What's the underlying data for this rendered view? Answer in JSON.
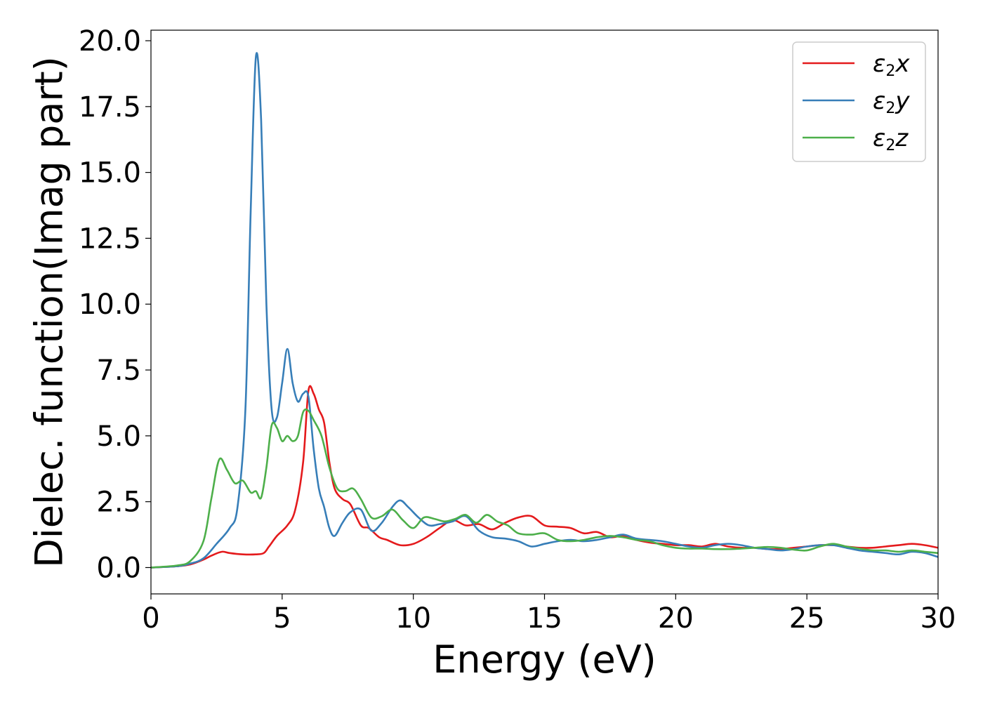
{
  "chart_data": {
    "type": "line",
    "xlabel": "Energy (eV)",
    "ylabel": "Dielec. function(Imag part)",
    "xlim": [
      0,
      30
    ],
    "ylim": [
      -1.0,
      20.4
    ],
    "xticks": [
      0,
      5,
      10,
      15,
      20,
      25,
      30
    ],
    "xtick_labels": [
      "0",
      "5",
      "10",
      "15",
      "20",
      "25",
      "30"
    ],
    "yticks": [
      0.0,
      2.5,
      5.0,
      7.5,
      10.0,
      12.5,
      15.0,
      17.5,
      20.0
    ],
    "ytick_labels": [
      "0.0",
      "2.5",
      "5.0",
      "7.5",
      "10.0",
      "12.5",
      "15.0",
      "17.5",
      "20.0"
    ],
    "grid": false,
    "legend_position": "top-right",
    "series": [
      {
        "name": "ε2x",
        "legend_main": "ε",
        "legend_sub": "2",
        "legend_var": "x",
        "color": "#e41a1c",
        "x": [
          0,
          1,
          1.5,
          2,
          2.3,
          2.7,
          3.0,
          3.5,
          4.0,
          4.3,
          4.5,
          4.8,
          5.2,
          5.5,
          5.8,
          6.0,
          6.2,
          6.4,
          6.6,
          6.8,
          7.0,
          7.3,
          7.6,
          8.0,
          8.3,
          8.7,
          9.0,
          9.5,
          10.0,
          10.5,
          11.0,
          11.5,
          12.0,
          12.5,
          13.0,
          13.5,
          14.0,
          14.5,
          15.0,
          15.5,
          16.0,
          16.5,
          17.0,
          17.5,
          18.0,
          18.5,
          19.0,
          19.5,
          20.0,
          20.5,
          21.0,
          21.5,
          22.0,
          22.5,
          23.0,
          23.5,
          24.0,
          24.5,
          25.0,
          25.5,
          26.0,
          26.5,
          27.0,
          27.5,
          28.0,
          28.5,
          29.0,
          29.5,
          30.0
        ],
        "y": [
          0.0,
          0.05,
          0.12,
          0.3,
          0.45,
          0.6,
          0.55,
          0.5,
          0.5,
          0.55,
          0.8,
          1.2,
          1.6,
          2.2,
          4.0,
          6.7,
          6.6,
          6.0,
          5.5,
          4.0,
          3.0,
          2.6,
          2.4,
          1.6,
          1.5,
          1.15,
          1.05,
          0.85,
          0.9,
          1.15,
          1.5,
          1.8,
          1.6,
          1.65,
          1.45,
          1.7,
          1.9,
          1.95,
          1.6,
          1.55,
          1.5,
          1.3,
          1.35,
          1.15,
          1.2,
          1.05,
          0.95,
          0.9,
          0.85,
          0.85,
          0.8,
          0.9,
          0.8,
          0.75,
          0.75,
          0.7,
          0.7,
          0.75,
          0.8,
          0.85,
          0.85,
          0.8,
          0.75,
          0.75,
          0.8,
          0.85,
          0.9,
          0.85,
          0.75
        ]
      },
      {
        "name": "ε2y",
        "legend_main": "ε",
        "legend_sub": "2",
        "legend_var": "y",
        "color": "#377eb8",
        "x": [
          0,
          1,
          1.5,
          2,
          2.5,
          3.0,
          3.3,
          3.6,
          3.8,
          4.0,
          4.2,
          4.4,
          4.6,
          4.8,
          5.0,
          5.2,
          5.4,
          5.6,
          5.8,
          6.0,
          6.2,
          6.4,
          6.6,
          6.8,
          7.0,
          7.3,
          7.6,
          8.0,
          8.4,
          8.8,
          9.2,
          9.5,
          9.8,
          10.2,
          10.6,
          11.0,
          11.5,
          12.0,
          12.5,
          13.0,
          13.5,
          14.0,
          14.5,
          15.0,
          15.5,
          16.0,
          16.5,
          17.0,
          17.5,
          18.0,
          18.5,
          19.0,
          19.5,
          20.0,
          20.5,
          21.0,
          21.5,
          22.0,
          22.5,
          23.0,
          23.5,
          24.0,
          24.5,
          25.0,
          25.5,
          26.0,
          26.5,
          27.0,
          27.5,
          28.0,
          28.5,
          29.0,
          29.5,
          30.0
        ],
        "y": [
          0.0,
          0.05,
          0.15,
          0.35,
          0.9,
          1.5,
          2.3,
          6.0,
          13.5,
          19.4,
          17.0,
          10.0,
          6.0,
          5.7,
          7.0,
          8.3,
          7.0,
          6.3,
          6.6,
          6.5,
          4.5,
          3.0,
          2.3,
          1.5,
          1.2,
          1.7,
          2.1,
          2.2,
          1.4,
          1.7,
          2.3,
          2.55,
          2.3,
          1.9,
          1.6,
          1.65,
          1.75,
          1.95,
          1.4,
          1.15,
          1.1,
          1.0,
          0.8,
          0.9,
          1.0,
          1.05,
          1.0,
          1.05,
          1.15,
          1.25,
          1.1,
          1.05,
          1.0,
          0.9,
          0.8,
          0.75,
          0.85,
          0.9,
          0.85,
          0.75,
          0.7,
          0.65,
          0.7,
          0.8,
          0.85,
          0.85,
          0.75,
          0.65,
          0.6,
          0.55,
          0.5,
          0.6,
          0.55,
          0.4
        ]
      },
      {
        "name": "ε2z",
        "legend_main": "ε",
        "legend_sub": "2",
        "legend_var": "z",
        "color": "#4daf4a",
        "x": [
          0,
          1,
          1.5,
          2.0,
          2.3,
          2.6,
          2.9,
          3.2,
          3.5,
          3.8,
          4.0,
          4.2,
          4.4,
          4.6,
          4.8,
          5.0,
          5.2,
          5.4,
          5.6,
          5.8,
          6.0,
          6.2,
          6.5,
          6.8,
          7.1,
          7.4,
          7.7,
          8.0,
          8.4,
          8.8,
          9.2,
          9.6,
          10.0,
          10.4,
          10.8,
          11.2,
          11.6,
          12.0,
          12.4,
          12.8,
          13.2,
          13.6,
          14.0,
          14.5,
          15.0,
          15.5,
          16.0,
          16.5,
          17.0,
          17.5,
          18.0,
          18.5,
          19.0,
          19.5,
          20.0,
          20.5,
          21.0,
          21.5,
          22.0,
          22.5,
          23.0,
          23.5,
          24.0,
          24.5,
          25.0,
          25.5,
          26.0,
          26.5,
          27.0,
          27.5,
          28.0,
          28.5,
          29.0,
          29.5,
          30.0
        ],
        "y": [
          0.0,
          0.08,
          0.25,
          1.0,
          2.6,
          4.1,
          3.7,
          3.2,
          3.3,
          2.85,
          2.9,
          2.65,
          3.8,
          5.4,
          5.3,
          4.8,
          5.0,
          4.8,
          5.0,
          5.9,
          5.95,
          5.6,
          5.0,
          3.8,
          3.0,
          2.9,
          3.0,
          2.6,
          1.9,
          1.95,
          2.2,
          1.8,
          1.5,
          1.9,
          1.85,
          1.75,
          1.85,
          2.0,
          1.7,
          2.0,
          1.75,
          1.6,
          1.3,
          1.25,
          1.3,
          1.05,
          1.0,
          1.05,
          1.15,
          1.2,
          1.15,
          1.05,
          1.0,
          0.85,
          0.75,
          0.72,
          0.72,
          0.7,
          0.7,
          0.72,
          0.75,
          0.78,
          0.75,
          0.68,
          0.65,
          0.8,
          0.9,
          0.8,
          0.72,
          0.65,
          0.65,
          0.6,
          0.65,
          0.6,
          0.55
        ]
      }
    ]
  }
}
